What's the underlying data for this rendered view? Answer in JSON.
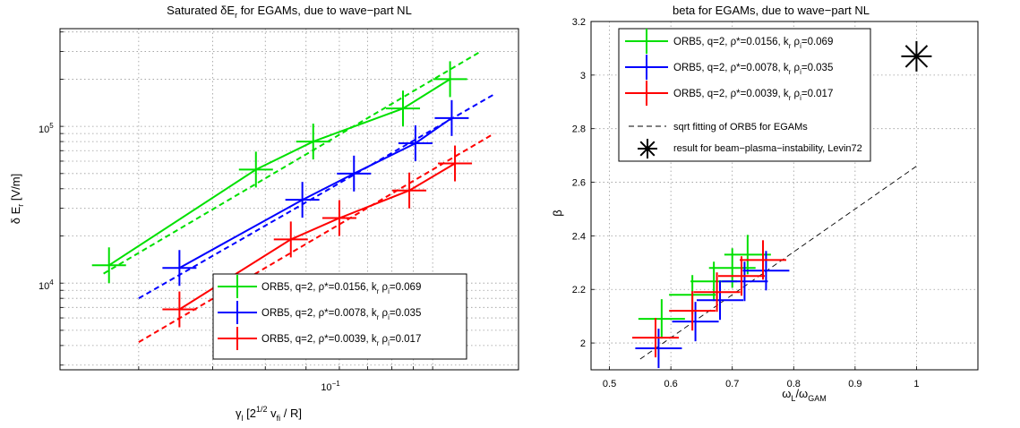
{
  "chart_data": [
    {
      "type": "scatter",
      "title_main": "Saturated δE",
      "title_sub": "r",
      "title_rest": " for EGAMs, due to wave−part NL",
      "xlabel_main": "γ",
      "xlabel_sub": "l",
      "xlabel_rest1": "  [2",
      "xlabel_sup": "1/2",
      "xlabel_rest2": " v",
      "xlabel_sub2": "fi",
      "xlabel_rest3": " / R]",
      "ylabel_main": "δ E",
      "ylabel_sub": "r",
      "ylabel_rest": " [V/m]",
      "xscale": "log",
      "yscale": "log",
      "xlim": [
        0.013,
        0.16
      ],
      "ylim": [
        2800,
        420000
      ],
      "x_tick_label": "10",
      "x_tick_exp": "−1",
      "y_tick_labels": [
        {
          "base": "10",
          "exp": "4",
          "value": 10000
        },
        {
          "base": "10",
          "exp": "5",
          "value": 100000
        }
      ],
      "grid": true,
      "legend_position": "bottom-right",
      "series": [
        {
          "name_a": "ORB5, q=2, ρ*=0.0156, k",
          "name_b": "r",
          "name_c": " ρ",
          "name_d": "i",
          "name_e": "=0.069",
          "color": "#00e000",
          "points": [
            [
              0.017,
              13000
            ],
            [
              0.038,
              53000
            ],
            [
              0.052,
              80000
            ],
            [
              0.085,
              130000
            ],
            [
              0.11,
              200000
            ]
          ],
          "fit": [
            [
              0.0165,
              11500
            ],
            [
              0.13,
              300000
            ]
          ]
        },
        {
          "name_a": "ORB5, q=2, ρ*=0.0078, k",
          "name_b": "r",
          "name_c": " ρ",
          "name_d": "i",
          "name_e": "=0.035",
          "color": "#0000ff",
          "points": [
            [
              0.025,
              12500
            ],
            [
              0.049,
              34000
            ],
            [
              0.065,
              50000
            ],
            [
              0.091,
              78000
            ],
            [
              0.111,
              113000
            ]
          ],
          "fit": [
            [
              0.02,
              8000
            ],
            [
              0.14,
              160000
            ]
          ]
        },
        {
          "name_a": "ORB5, q=2, ρ*=0.0039, k",
          "name_b": "r",
          "name_c": " ρ",
          "name_d": "i",
          "name_e": "=0.017",
          "color": "#ff0000",
          "points": [
            [
              0.025,
              6800
            ],
            [
              0.046,
              19000
            ],
            [
              0.06,
              26000
            ],
            [
              0.088,
              39000
            ],
            [
              0.113,
              58000
            ]
          ],
          "fit": [
            [
              0.02,
              4200
            ],
            [
              0.14,
              90000
            ]
          ]
        }
      ]
    },
    {
      "type": "scatter",
      "title": "beta for EGAMs, due to wave−part NL",
      "xlabel_main": "ω",
      "xlabel_sub": "L",
      "xlabel_rest": "/ω",
      "xlabel_sub2": "GAM",
      "ylabel": "β",
      "xlim": [
        0.47,
        1.1
      ],
      "ylim": [
        1.9,
        3.2
      ],
      "x_ticks": [
        0.5,
        0.6,
        0.7,
        0.8,
        0.9,
        1
      ],
      "x_tick_labels": [
        "0.5",
        "0.6",
        "0.7",
        "0.8",
        "0.9",
        "1"
      ],
      "y_ticks": [
        2,
        2.2,
        2.4,
        2.6,
        2.8,
        3,
        3.2
      ],
      "y_tick_labels": [
        "2",
        "2.2",
        "2.4",
        "2.6",
        "2.8",
        "3",
        "3.2"
      ],
      "grid": true,
      "legend_position": "top-left",
      "series": [
        {
          "name_a": "ORB5, q=2, ρ*=0.0156, k",
          "name_b": "r",
          "name_c": " ρ",
          "name_d": "i",
          "name_e": "=0.069",
          "color": "#00e000",
          "points": [
            [
              0.585,
              2.09
            ],
            [
              0.635,
              2.18
            ],
            [
              0.67,
              2.23
            ],
            [
              0.7,
              2.28
            ],
            [
              0.725,
              2.33
            ]
          ]
        },
        {
          "name_a": "ORB5, q=2, ρ*=0.0078, k",
          "name_b": "r",
          "name_c": " ρ",
          "name_d": "i",
          "name_e": "=0.035",
          "color": "#0000ff",
          "points": [
            [
              0.58,
              1.98
            ],
            [
              0.64,
              2.08
            ],
            [
              0.68,
              2.16
            ],
            [
              0.72,
              2.23
            ],
            [
              0.755,
              2.27
            ]
          ]
        },
        {
          "name_a": "ORB5, q=2, ρ*=0.0039, k",
          "name_b": "r",
          "name_c": " ρ",
          "name_d": "i",
          "name_e": "=0.017",
          "color": "#ff0000",
          "points": [
            [
              0.575,
              2.02
            ],
            [
              0.635,
              2.12
            ],
            [
              0.675,
              2.19
            ],
            [
              0.715,
              2.25
            ],
            [
              0.75,
              2.31
            ]
          ]
        }
      ],
      "fit_name": "sqrt fitting of ORB5 for EGAMs",
      "fit": [
        [
          0.55,
          1.94
        ],
        [
          1.0,
          2.66
        ]
      ],
      "marker_name": "result for beam−plasma−instability, Levin72",
      "marker": [
        1.0,
        3.07
      ]
    }
  ]
}
